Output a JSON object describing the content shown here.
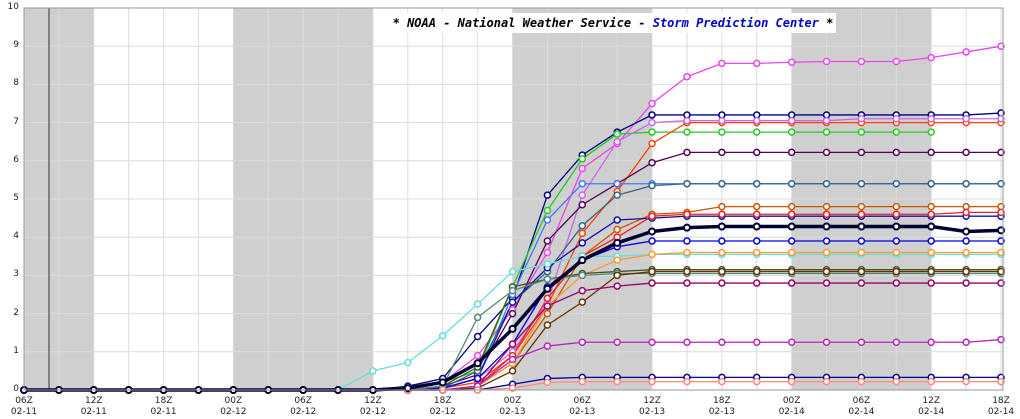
{
  "chart_data": {
    "type": "line",
    "title_parts": [
      "* NOAA - National Weather Service -",
      "Storm Prediction Center",
      "*"
    ],
    "categories": [
      "06Z\n02-11",
      null,
      "12Z\n02-11",
      null,
      "18Z\n02-11",
      null,
      "00Z\n02-12",
      null,
      "06Z\n02-12",
      null,
      "12Z\n02-12",
      null,
      "18Z\n02-12",
      null,
      "00Z\n02-13",
      null,
      "06Z\n02-13",
      null,
      "12Z\n02-13",
      null,
      "18Z\n02-13",
      null,
      "00Z\n02-14",
      null,
      "06Z\n02-14",
      null,
      "12Z\n02-14",
      null,
      "18Z\n02-14"
    ],
    "ylim": [
      0,
      10
    ],
    "yticks": [
      0,
      1,
      2,
      3,
      4,
      5,
      6,
      7,
      8,
      9,
      10
    ],
    "grid": true,
    "series": [
      {
        "color": "#ee44ee",
        "values": [
          0,
          0,
          0,
          0,
          0,
          0,
          0,
          0,
          0,
          0,
          0,
          0.05,
          0.2,
          0.9,
          2.1,
          3.6,
          5.8,
          6.45,
          7.5,
          8.2,
          8.55,
          8.55,
          8.58,
          8.6,
          8.6,
          8.6,
          8.7,
          8.85,
          9.0
        ]
      },
      {
        "color": "#000080",
        "values": [
          0,
          0,
          0,
          0,
          0,
          0,
          0,
          0,
          0,
          0,
          0,
          0.1,
          0.3,
          1.4,
          2.4,
          5.1,
          6.15,
          6.75,
          7.2,
          7.2,
          7.2,
          7.2,
          7.2,
          7.2,
          7.2,
          7.2,
          7.2,
          7.2,
          7.25
        ]
      },
      {
        "color": "#22cc22",
        "values": [
          0,
          0,
          0,
          0,
          0,
          0,
          0,
          0,
          0,
          0,
          0,
          0.05,
          0.2,
          0.5,
          2.7,
          4.7,
          6.05,
          6.7,
          6.75,
          6.75,
          6.75,
          6.75,
          6.75,
          6.75,
          6.75,
          6.75,
          6.75,
          null,
          null
        ]
      },
      {
        "color": "#ff4400",
        "values": [
          0,
          0,
          0,
          0,
          0,
          0,
          0,
          0,
          0,
          0,
          0,
          0,
          0.05,
          0.2,
          0.9,
          2.2,
          4.1,
          5.2,
          6.45,
          7.0,
          7.0,
          7.0,
          7.0,
          7.0,
          7.0,
          7.0,
          7.0,
          7.0,
          7.0
        ]
      },
      {
        "color": "#cc66ee",
        "values": [
          0,
          0,
          0,
          0,
          0,
          0,
          0,
          0,
          0,
          0,
          0,
          0,
          0.05,
          0.3,
          1.0,
          2.3,
          5.1,
          6.5,
          7.0,
          7.05,
          7.05,
          7.05,
          7.05,
          7.05,
          7.1,
          7.1,
          7.1,
          7.1,
          7.1
        ]
      },
      {
        "color": "#550055",
        "values": [
          0,
          0,
          0,
          0,
          0,
          0,
          0,
          0,
          0,
          0,
          0,
          0,
          0.1,
          0.4,
          2.0,
          3.9,
          4.85,
          5.4,
          5.95,
          6.22,
          6.22,
          6.22,
          6.22,
          6.22,
          6.22,
          6.22,
          6.22,
          6.22,
          6.22
        ]
      },
      {
        "color": "#4477ff",
        "values": [
          0,
          0,
          0,
          0,
          0,
          0,
          0,
          0,
          0,
          0,
          0,
          0,
          0.05,
          0.3,
          2.5,
          4.45,
          5.4,
          5.4,
          5.4,
          5.4,
          5.4,
          5.4,
          5.4,
          5.4,
          5.4,
          5.4,
          5.4,
          5.4,
          5.4
        ]
      },
      {
        "color": "#336688",
        "values": [
          0,
          0,
          0,
          0,
          0,
          0,
          0,
          0,
          0,
          0,
          0,
          0,
          0.05,
          0.5,
          2.3,
          3.1,
          4.3,
          5.1,
          5.35,
          5.4,
          5.4,
          5.4,
          5.4,
          5.4,
          5.4,
          5.4,
          5.4,
          5.4,
          5.4
        ]
      },
      {
        "color": "#cc5500",
        "values": [
          0,
          0,
          0,
          0,
          0,
          0,
          0,
          0,
          0,
          0,
          0,
          0,
          0,
          0.1,
          0.7,
          2.0,
          3.5,
          4.2,
          4.6,
          4.65,
          4.8,
          4.8,
          4.8,
          4.8,
          4.8,
          4.8,
          4.8,
          4.8,
          4.8
        ]
      },
      {
        "color": "#1111aa",
        "values": [
          0,
          0,
          0,
          0,
          0,
          0,
          0,
          0,
          0,
          0,
          0,
          0,
          0.05,
          0.3,
          2.3,
          3.2,
          3.85,
          4.45,
          4.5,
          4.55,
          4.55,
          4.55,
          4.55,
          4.55,
          4.55,
          4.55,
          4.55,
          4.55,
          4.55
        ]
      },
      {
        "color": "#ee2222",
        "values": [
          0,
          0,
          0,
          0,
          0,
          0,
          0,
          0,
          0,
          0,
          0,
          0,
          0,
          0.1,
          0.9,
          2.4,
          3.5,
          4.0,
          4.55,
          4.6,
          4.6,
          4.6,
          4.6,
          4.6,
          4.6,
          4.6,
          4.6,
          4.65,
          4.65
        ]
      },
      {
        "color": "#0000dd",
        "values": [
          0,
          0,
          0,
          0,
          0,
          0,
          0,
          0,
          0,
          0,
          0,
          0,
          0.05,
          0.3,
          1.2,
          2.7,
          3.4,
          3.75,
          3.9,
          3.9,
          3.9,
          3.9,
          3.9,
          3.9,
          3.9,
          3.9,
          3.9,
          3.9,
          3.9
        ]
      },
      {
        "color": "#66dddd",
        "values": [
          0,
          0,
          0,
          0,
          0,
          0,
          0,
          0,
          0,
          0,
          0.5,
          0.72,
          1.42,
          2.25,
          3.1,
          3.3,
          3.5,
          3.5,
          3.55,
          3.55,
          3.55,
          3.55,
          3.55,
          3.55,
          3.55,
          3.55,
          3.55,
          3.55,
          3.55
        ]
      },
      {
        "color": "#ff9933",
        "values": [
          0,
          0,
          0,
          0,
          0,
          0,
          0,
          0,
          0,
          0,
          0,
          0,
          0,
          0.1,
          0.7,
          2.2,
          3.0,
          3.4,
          3.55,
          3.6,
          3.6,
          3.6,
          3.6,
          3.6,
          3.6,
          3.6,
          3.6,
          3.6,
          3.6
        ]
      },
      {
        "color": "#445522",
        "values": [
          0,
          0,
          0,
          0,
          0,
          0,
          0,
          0,
          0,
          0,
          0,
          0,
          0.1,
          0.6,
          2.7,
          2.9,
          3.05,
          3.1,
          3.15,
          3.15,
          3.15,
          3.15,
          3.15,
          3.15,
          3.15,
          3.15,
          3.15,
          3.15,
          3.15
        ]
      },
      {
        "color": "#558877",
        "values": [
          0,
          0,
          0,
          0,
          0,
          0,
          0,
          0,
          0,
          0,
          0,
          0,
          0.1,
          1.9,
          2.6,
          2.9,
          3.0,
          3.05,
          3.05,
          3.05,
          3.05,
          3.05,
          3.05,
          3.05,
          3.05,
          3.05,
          3.05,
          3.05,
          3.05
        ]
      },
      {
        "color": "#663300",
        "values": [
          0,
          0,
          0,
          0,
          0,
          0,
          0,
          0,
          0,
          0,
          0,
          0,
          0,
          0.05,
          0.5,
          1.7,
          2.3,
          3.0,
          3.1,
          3.1,
          3.1,
          3.1,
          3.1,
          3.1,
          3.1,
          3.1,
          3.1,
          3.1,
          3.1
        ]
      },
      {
        "color": "#990066",
        "values": [
          0,
          0,
          0,
          0,
          0,
          0,
          0,
          0,
          0,
          0,
          0,
          0,
          0,
          0.1,
          1.2,
          2.2,
          2.6,
          2.72,
          2.8,
          2.8,
          2.8,
          2.8,
          2.8,
          2.8,
          2.8,
          2.8,
          2.8,
          2.8,
          2.8
        ]
      },
      {
        "color": "#bb22bb",
        "values": [
          0,
          0,
          0,
          0,
          0,
          0,
          0,
          0,
          0,
          0,
          0,
          0,
          0,
          0.1,
          0.8,
          1.15,
          1.25,
          1.25,
          1.25,
          1.25,
          1.25,
          1.25,
          1.25,
          1.25,
          1.25,
          1.25,
          1.25,
          1.25,
          1.32
        ]
      },
      {
        "color": "#000099",
        "values": [
          0,
          0,
          0,
          0,
          0,
          0,
          0,
          0,
          0,
          0,
          0,
          0,
          0,
          0,
          0.15,
          0.3,
          0.33,
          0.33,
          0.33,
          0.33,
          0.33,
          0.33,
          0.33,
          0.33,
          0.33,
          0.33,
          0.33,
          0.33,
          0.33
        ]
      },
      {
        "color": "#ff8877",
        "values": [
          0,
          0,
          0,
          0,
          0,
          0,
          0,
          0,
          0,
          0,
          0,
          0,
          0,
          0,
          0.05,
          0.2,
          0.22,
          0.22,
          0.22,
          0.22,
          0.22,
          0.22,
          0.22,
          0.22,
          0.22,
          0.22,
          0.22,
          0.22,
          0.22
        ]
      },
      {
        "color": "#000033",
        "values": [
          0,
          0,
          0,
          0,
          0,
          0,
          0,
          0,
          0,
          0,
          0,
          0.05,
          0.2,
          0.7,
          1.6,
          2.65,
          3.4,
          3.85,
          4.15,
          4.25,
          4.28,
          4.28,
          4.28,
          4.28,
          4.28,
          4.28,
          4.28,
          4.15,
          4.18
        ]
      }
    ]
  }
}
